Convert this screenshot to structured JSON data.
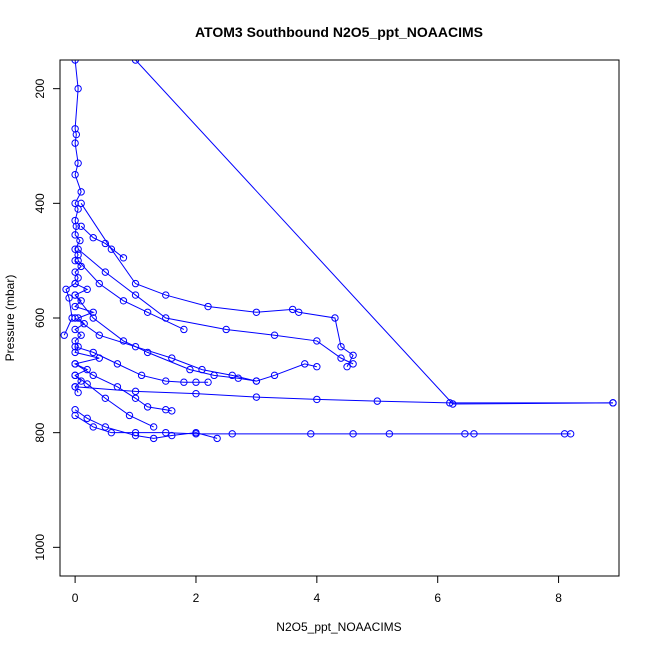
{
  "chart_data": {
    "type": "line",
    "title": "ATOM3 Southbound N2O5_ppt_NOAACIMS",
    "xlabel": "N2O5_ppt_NOAACIMS",
    "ylabel": "Pressure (mbar)",
    "xlim": [
      -0.25,
      9.0
    ],
    "ylim": [
      1050,
      150
    ],
    "y_reversed": true,
    "x_ticks": [
      0,
      2,
      4,
      6,
      8
    ],
    "y_ticks": [
      200,
      400,
      600,
      800,
      1000
    ],
    "grid": false,
    "legend": "none",
    "series_color": "#0000ff",
    "marker": "open-circle",
    "series": [
      {
        "x": [
          0.0,
          0.05,
          0.0,
          0.02,
          0.0,
          0.05,
          0.0,
          0.1,
          0.0,
          0.05,
          0.0,
          0.02,
          0.0,
          0.08,
          0.0,
          0.05,
          0.0,
          0.1,
          0.0,
          0.05,
          0.0,
          0.2,
          0.0,
          0.1,
          0.0,
          0.3,
          0.05,
          0.15,
          0.0,
          0.1,
          0.0,
          0.05,
          0.0,
          0.4,
          0.0,
          0.2,
          0.0,
          0.1,
          0.0,
          0.05
        ],
        "y": [
          150,
          200,
          270,
          280,
          295,
          330,
          350,
          380,
          400,
          410,
          430,
          440,
          455,
          465,
          480,
          490,
          500,
          510,
          520,
          530,
          540,
          550,
          560,
          570,
          580,
          590,
          600,
          610,
          620,
          630,
          640,
          650,
          660,
          670,
          680,
          690,
          700,
          710,
          720,
          730
        ]
      },
      {
        "x": [
          0.1,
          0.6,
          1.0,
          1.5,
          2.2,
          3.0,
          3.6,
          3.7,
          4.3,
          4.4,
          4.6,
          4.5
        ],
        "y": [
          400,
          480,
          540,
          560,
          580,
          590,
          585,
          590,
          600,
          650,
          665,
          685
        ]
      },
      {
        "x": [
          0.05,
          0.5,
          1.0,
          1.5,
          2.5,
          3.3,
          4.0,
          4.4,
          4.6
        ],
        "y": [
          480,
          520,
          560,
          600,
          620,
          630,
          640,
          670,
          680
        ]
      },
      {
        "x": [
          0.0,
          0.3,
          0.8,
          1.2,
          1.9,
          2.3,
          2.7,
          3.0,
          3.3,
          3.8,
          4.0
        ],
        "y": [
          560,
          600,
          640,
          660,
          690,
          700,
          705,
          710,
          700,
          680,
          685
        ]
      },
      {
        "x": [
          0.0,
          0.4,
          1.0,
          1.6,
          2.1,
          2.6,
          3.0
        ],
        "y": [
          600,
          630,
          650,
          670,
          690,
          700,
          710
        ]
      },
      {
        "x": [
          1.0,
          6.25,
          8.9
        ],
        "y": [
          150,
          750,
          748
        ]
      },
      {
        "x": [
          0.0,
          1.0,
          2.0,
          3.0,
          4.0,
          5.0,
          6.2,
          8.9
        ],
        "y": [
          720,
          728,
          732,
          738,
          742,
          745,
          748,
          748
        ]
      },
      {
        "x": [
          0.0,
          0.3,
          0.6,
          1.0,
          1.5,
          2.0,
          2.6,
          3.9,
          4.6,
          5.2,
          6.45,
          6.6,
          8.1,
          8.2
        ],
        "y": [
          770,
          790,
          800,
          800,
          800,
          802,
          802,
          802,
          802,
          802,
          802,
          802,
          802,
          802
        ]
      },
      {
        "x": [
          0.0,
          0.2,
          0.5,
          1.0,
          1.3,
          1.6,
          2.0,
          2.35
        ],
        "y": [
          760,
          775,
          790,
          805,
          810,
          805,
          800,
          810
        ]
      },
      {
        "x": [
          0.0,
          0.3,
          0.7,
          1.1,
          1.5,
          1.8,
          2.0,
          2.2
        ],
        "y": [
          650,
          660,
          680,
          700,
          710,
          712,
          712,
          712
        ]
      },
      {
        "x": [
          0.05,
          0.4,
          0.8,
          1.2,
          1.8
        ],
        "y": [
          500,
          540,
          570,
          590,
          620
        ]
      },
      {
        "x": [
          0.1,
          0.3,
          0.5,
          0.8
        ],
        "y": [
          440,
          460,
          470,
          495
        ]
      },
      {
        "x": [
          0.0,
          -0.15,
          -0.1,
          -0.05,
          -0.18
        ],
        "y": [
          540,
          550,
          565,
          600,
          630
        ]
      },
      {
        "x": [
          0.0,
          0.3,
          0.7,
          1.0,
          1.2,
          1.5,
          1.6
        ],
        "y": [
          680,
          700,
          720,
          740,
          755,
          760,
          762
        ]
      },
      {
        "x": [
          0.0,
          0.2,
          0.5,
          0.9,
          1.3
        ],
        "y": [
          700,
          715,
          740,
          770,
          790
        ]
      }
    ]
  }
}
